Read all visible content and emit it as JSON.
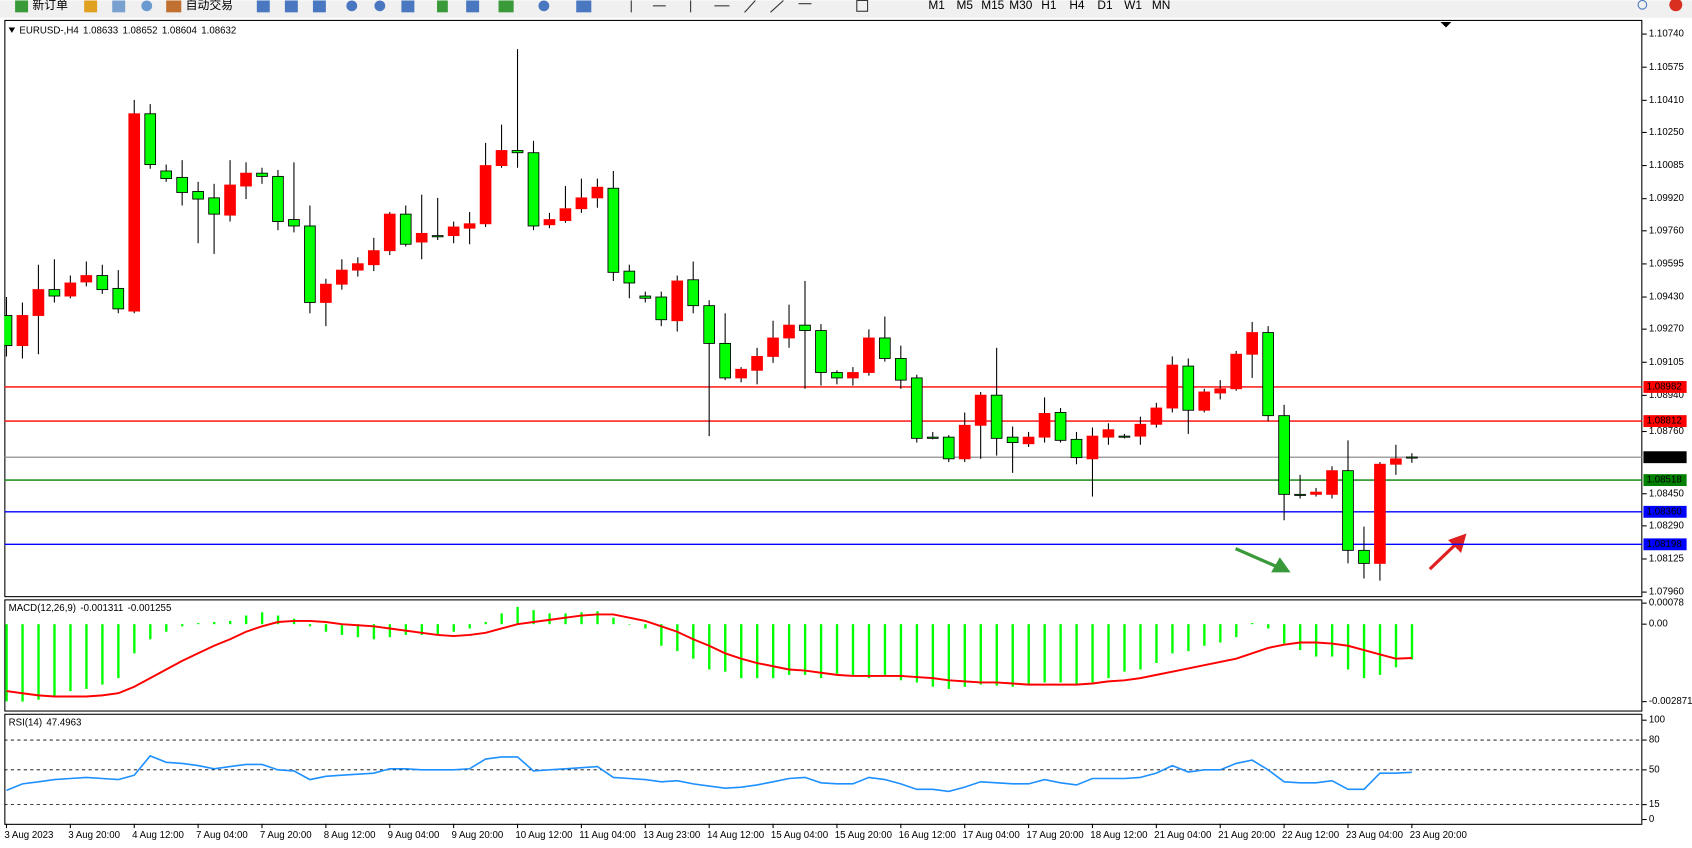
{
  "toolbar": {
    "new_order": "新订单",
    "auto_trading": "自动交易",
    "timeframes": [
      "M1",
      "M5",
      "M15",
      "M30",
      "H1",
      "H4",
      "D1",
      "W1",
      "MN"
    ]
  },
  "chart_data": [
    {
      "type": "candlestick",
      "symbol": "EURUSD-,H4",
      "categories": [
        "3 Aug 2023",
        null,
        null,
        null,
        "3 Aug 20:00",
        null,
        null,
        null,
        "4 Aug 12:00",
        null,
        null,
        null,
        "7 Aug 04:00",
        null,
        null,
        null,
        "7 Aug 20:00",
        null,
        null,
        null,
        "8 Aug 12:00",
        null,
        null,
        null,
        "9 Aug 04:00",
        null,
        null,
        null,
        "9 Aug 20:00",
        null,
        null,
        null,
        "10 Aug 12:00",
        null,
        null,
        null,
        "11 Aug 04:00",
        null,
        null,
        null,
        "13 Aug 23:00",
        null,
        null,
        null,
        "14 Aug 12:00",
        null,
        null,
        null,
        "15 Aug 04:00",
        null,
        null,
        null,
        "15 Aug 20:00",
        null,
        null,
        null,
        "16 Aug 12:00",
        null,
        null,
        null,
        "17 Aug 04:00",
        null,
        null,
        null,
        "17 Aug 20:00",
        null,
        null,
        null,
        "18 Aug 12:00",
        null,
        null,
        null,
        "21 Aug 04:00",
        null,
        null,
        null,
        "21 Aug 20:00",
        null,
        null,
        null,
        "22 Aug 12:00",
        null,
        null,
        null,
        "23 Aug 04:00",
        null,
        null,
        null,
        "23 Aug 20:00"
      ],
      "open": [
        1.09338,
        1.09188,
        1.09338,
        1.09467,
        1.09435,
        1.09505,
        1.09537,
        1.09473,
        1.0936,
        1.10343,
        1.10058,
        1.10026,
        1.09956,
        1.09924,
        1.09838,
        1.09983,
        1.10047,
        1.10031,
        1.09816,
        1.09784,
        1.09403,
        1.09494,
        1.09564,
        1.09591,
        1.09661,
        1.09843,
        1.09704,
        1.09736,
        1.09736,
        1.09773,
        1.09795,
        1.10085,
        1.1016,
        1.10149,
        1.0979,
        1.09811,
        1.0987,
        1.09924,
        1.09972,
        1.09559,
        1.09435,
        1.0943,
        1.09312,
        1.09516,
        1.09387,
        1.09199,
        1.09027,
        1.09065,
        1.09134,
        1.09226,
        1.0929,
        1.09263,
        1.09054,
        1.09027,
        1.09054,
        1.09226,
        1.09124,
        1.09027,
        1.08732,
        1.08732,
        1.08624,
        1.08791,
        1.08941,
        1.08732,
        1.08699,
        1.08732,
        1.08855,
        1.08721,
        1.08624,
        1.08732,
        1.08737,
        1.08737,
        1.08796,
        1.08877,
        1.09086,
        1.08866,
        1.08952,
        1.08973,
        1.09145,
        1.09253,
        1.08839,
        1.08447,
        1.08447,
        1.08447,
        1.08565,
        1.08168,
        1.08103,
        1.08597,
        1.08633
      ],
      "high": [
        1.0943,
        1.09403,
        1.09591,
        1.09618,
        1.09537,
        1.09607,
        1.09591,
        1.09564,
        1.10412,
        1.10391,
        1.1009,
        1.10112,
        1.10004,
        1.09994,
        1.10112,
        1.10101,
        1.10074,
        1.10063,
        1.10101,
        1.09886,
        1.09521,
        1.09618,
        1.09628,
        1.09725,
        1.09854,
        1.09886,
        1.0994,
        1.09924,
        1.09806,
        1.09854,
        1.10198,
        1.10289,
        1.10665,
        1.10208,
        1.09849,
        1.09983,
        1.1002,
        1.1002,
        1.10058,
        1.09591,
        1.09457,
        1.09457,
        1.09537,
        1.09607,
        1.09414,
        1.09349,
        1.09081,
        1.09177,
        1.09312,
        1.09392,
        1.0951,
        1.09295,
        1.09065,
        1.09081,
        1.09269,
        1.09333,
        1.09188,
        1.09043,
        1.08758,
        1.08742,
        1.08855,
        1.08957,
        1.09177,
        1.08785,
        1.08758,
        1.0893,
        1.08877,
        1.08758,
        1.0878,
        1.08801,
        1.08748,
        1.08834,
        1.08903,
        1.09134,
        1.09124,
        1.08973,
        1.09016,
        1.09161,
        1.09306,
        1.09285,
        1.08893,
        1.08544,
        1.08479,
        1.08587,
        1.08716,
        1.08286,
        1.08608,
        1.08694,
        1.08652
      ],
      "low": [
        1.09134,
        1.09124,
        1.09145,
        1.09403,
        1.09424,
        1.09483,
        1.09446,
        1.09349,
        1.09349,
        1.10069,
        1.10004,
        1.09886,
        1.09698,
        1.09645,
        1.09806,
        1.09918,
        1.09994,
        1.09763,
        1.09752,
        1.09349,
        1.09285,
        1.09467,
        1.09532,
        1.09559,
        1.09639,
        1.09682,
        1.09618,
        1.09714,
        1.09698,
        1.09693,
        1.09779,
        1.10074,
        1.10074,
        1.09763,
        1.09773,
        1.098,
        1.09849,
        1.09875,
        1.0951,
        1.09424,
        1.09403,
        1.09285,
        1.09258,
        1.09349,
        1.08737,
        1.09016,
        1.09005,
        1.08995,
        1.09102,
        1.09177,
        1.08973,
        1.08989,
        1.08995,
        1.08989,
        1.09038,
        1.09108,
        1.08973,
        1.08705,
        1.08721,
        1.08608,
        1.08608,
        1.08624,
        1.0864,
        1.08554,
        1.08683,
        1.08705,
        1.08705,
        1.08597,
        1.08436,
        1.08694,
        1.08726,
        1.08694,
        1.0878,
        1.08855,
        1.08748,
        1.08855,
        1.0892,
        1.08963,
        1.09027,
        1.08812,
        1.08318,
        1.08426,
        1.08436,
        1.08426,
        1.08103,
        1.08028,
        1.08017,
        1.08544,
        1.08604
      ],
      "close": [
        1.09188,
        1.09338,
        1.09467,
        1.09435,
        1.095,
        1.09537,
        1.09467,
        1.09371,
        1.10343,
        1.1009,
        1.1002,
        1.09951,
        1.09918,
        1.09843,
        1.09988,
        1.10047,
        1.10031,
        1.09806,
        1.09784,
        1.09403,
        1.09494,
        1.09564,
        1.09596,
        1.09661,
        1.09843,
        1.09693,
        1.09747,
        1.0973,
        1.09779,
        1.09795,
        1.10085,
        1.1016,
        1.10149,
        1.09784,
        1.09816,
        1.0987,
        1.09924,
        1.09977,
        1.09553,
        1.095,
        1.09424,
        1.09317,
        1.0951,
        1.09387,
        1.09199,
        1.09027,
        1.0907,
        1.09134,
        1.09226,
        1.0929,
        1.09263,
        1.09054,
        1.09027,
        1.09054,
        1.09226,
        1.09124,
        1.09016,
        1.08726,
        1.08726,
        1.08624,
        1.08791,
        1.08941,
        1.08726,
        1.08705,
        1.08732,
        1.0885,
        1.08716,
        1.0863,
        1.08737,
        1.08769,
        1.08732,
        1.08796,
        1.08877,
        1.09091,
        1.08866,
        1.08957,
        1.08973,
        1.09145,
        1.09253,
        1.08839,
        1.08447,
        1.08442,
        1.08458,
        1.08565,
        1.08168,
        1.08103,
        1.08597,
        1.08624,
        1.08632
      ],
      "up_color": "#ff0000",
      "down_color": "#00ff00",
      "wick_color": "#000000",
      "ylim": [
        1.0794,
        1.108
      ],
      "yticks": [
        {
          "value": 1.1074,
          "label": "1.10740"
        },
        1.10575,
        {
          "value": 1.1041,
          "label": "1.10410"
        },
        {
          "value": 1.1025,
          "label": "1.10250"
        },
        1.10085,
        {
          "value": 1.0992,
          "label": "1.09920"
        },
        {
          "value": 1.0976,
          "label": "1.09760"
        },
        1.09595,
        {
          "value": 1.0943,
          "label": "1.09430"
        },
        {
          "value": 1.0927,
          "label": "1.09270"
        },
        1.09105,
        {
          "value": 1.0894,
          "label": "1.08940"
        },
        {
          "value": 1.0876,
          "label": "1.08760"
        },
        {
          "value": 1.0845,
          "label": "1.08450"
        },
        {
          "value": 1.0829,
          "label": "1.08290"
        },
        1.08125,
        {
          "value": 1.0796,
          "label": "1.07960"
        }
      ],
      "hlines": [
        {
          "value": 1.08982,
          "color": "#ff0000"
        },
        {
          "value": 1.08812,
          "color": "#ff0000"
        },
        {
          "value": 1.08518,
          "color": "#008000"
        },
        {
          "value": 1.0836,
          "label": "1.08360",
          "color": "#0000ff"
        },
        {
          "value": 1.08198,
          "color": "#0000ff"
        }
      ],
      "bid_line_color": "#808080",
      "grid": false
    },
    {
      "type": "macd",
      "title": "MACD(12,26,9)",
      "series": [
        {
          "style": "bar",
          "color": "#00ff00",
          "values": [
            -0.00286,
            -0.00287,
            -0.0028,
            -0.00268,
            -0.00248,
            -0.0024,
            -0.00224,
            -0.002,
            -0.00108,
            -0.00056,
            -0.00028,
            -8e-05,
            4e-05,
            8e-05,
            0.00012,
            0.00032,
            0.00044,
            0.00032,
            0.0002,
            -8e-05,
            -0.00028,
            -0.0004,
            -0.00048,
            -0.00056,
            -0.00048,
            -0.0004,
            -0.0004,
            -0.0004,
            -0.00028,
            -0.00016,
            8e-05,
            0.0004,
            0.00064,
            0.00052,
            0.0004,
            0.0004,
            0.00044,
            0.00048,
            0.00024,
            0,
            -0.00016,
            -0.0008,
            -0.001,
            -0.00128,
            -0.00168,
            -0.00176,
            -0.002,
            -0.002,
            -0.002,
            -0.00188,
            -0.00188,
            -0.002,
            -0.00184,
            -0.00188,
            -0.002,
            -0.00188,
            -0.00208,
            -0.00216,
            -0.00232,
            -0.0024,
            -0.00232,
            -0.00224,
            -0.00228,
            -0.00232,
            -0.00224,
            -0.00216,
            -0.00216,
            -0.00224,
            -0.00216,
            -0.002,
            -0.00176,
            -0.00168,
            -0.00144,
            -0.00108,
            -0.001,
            -0.0008,
            -0.00068,
            -0.00048,
            4e-05,
            -0.00016,
            -0.00072,
            -0.00096,
            -0.0012,
            -0.0012,
            -0.00168,
            -0.002,
            -0.00188,
            -0.0016,
            -0.001311
          ]
        },
        {
          "style": "line",
          "color": "#ff0000",
          "values": [
            -0.00248,
            -0.00256,
            -0.00264,
            -0.00268,
            -0.00268,
            -0.00268,
            -0.00264,
            -0.00256,
            -0.00232,
            -0.002,
            -0.00168,
            -0.00136,
            -0.00108,
            -0.0008,
            -0.00056,
            -0.00028,
            -8e-05,
            8e-05,
            0.00012,
            0.00012,
            8e-05,
            0,
            -4e-05,
            -8e-05,
            -0.00016,
            -0.00024,
            -0.00032,
            -0.0004,
            -0.00044,
            -0.0004,
            -0.00032,
            -0.00016,
            0,
            8e-05,
            0.00016,
            0.00024,
            0.00032,
            0.00036,
            0.00036,
            0.00024,
            0.00012,
            -8e-05,
            -0.00028,
            -0.00056,
            -0.0008,
            -0.00108,
            -0.00128,
            -0.00144,
            -0.00156,
            -0.00168,
            -0.00172,
            -0.0018,
            -0.00188,
            -0.00192,
            -0.00192,
            -0.00192,
            -0.00192,
            -0.00196,
            -0.002,
            -0.00208,
            -0.00212,
            -0.00216,
            -0.00216,
            -0.0022,
            -0.00224,
            -0.00224,
            -0.00224,
            -0.00224,
            -0.0022,
            -0.00212,
            -0.00208,
            -0.002,
            -0.00188,
            -0.00176,
            -0.00164,
            -0.00152,
            -0.0014,
            -0.00128,
            -0.00108,
            -0.00088,
            -0.00076,
            -0.00068,
            -0.00068,
            -0.00072,
            -0.0008,
            -0.00096,
            -0.00112,
            -0.00128,
            -0.001255
          ]
        }
      ],
      "ylim": [
        -0.0032,
        0.00088
      ],
      "yticks": [
        0.00078,
        {
          "value": 0,
          "label": "0.00"
        },
        -0.002871
      ]
    },
    {
      "type": "rsi",
      "title": "RSI(14)",
      "color": "#1e90ff",
      "values": [
        29.3,
        35.9,
        38.0,
        40.2,
        41.3,
        42.4,
        41.3,
        40.2,
        44.6,
        64.1,
        57.6,
        56.5,
        54.3,
        51.1,
        53.3,
        55.4,
        55.4,
        50.0,
        48.9,
        40.2,
        43.5,
        44.6,
        45.7,
        46.7,
        51.1,
        51.1,
        50.0,
        50.0,
        50.0,
        51.1,
        60.9,
        63.0,
        63.0,
        48.9,
        50.0,
        51.1,
        52.2,
        53.3,
        42.4,
        41.3,
        40.2,
        38.0,
        39.1,
        35.9,
        33.7,
        31.5,
        32.6,
        34.8,
        38.0,
        41.3,
        42.4,
        37.0,
        35.9,
        35.9,
        42.4,
        40.2,
        35.9,
        30.4,
        30.4,
        28.3,
        32.6,
        38.0,
        37.0,
        35.9,
        35.9,
        40.2,
        37.0,
        34.8,
        41.3,
        41.3,
        41.3,
        42.4,
        46.7,
        54.3,
        47.8,
        50.0,
        50.0,
        56.5,
        59.8,
        50.0,
        38.0,
        37.0,
        37.0,
        39.1,
        30.4,
        30.4,
        46.7,
        46.7,
        47.4963
      ],
      "ylim": [
        -4.3,
        106.5
      ],
      "yticks": [
        100,
        80,
        50,
        15,
        0
      ],
      "levels": [
        80,
        50,
        15
      ]
    }
  ]
}
